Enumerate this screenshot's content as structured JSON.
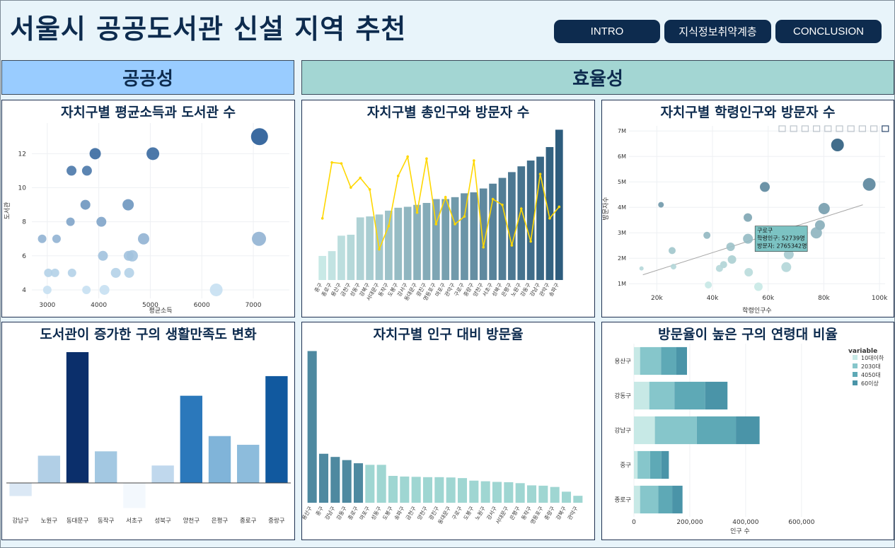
{
  "page_title": "서울시 공공도서관 신설 지역 추천",
  "nav": [
    "INTRO",
    "지식정보취약계층",
    "CONCLUSION"
  ],
  "sections": {
    "left": "공공성",
    "right": "효율성"
  },
  "colors": {
    "navy": "#0d2b4e",
    "section_left": "#99ccff",
    "section_right": "#a3d6d3"
  },
  "toolbar_icons": [
    "camera-icon",
    "zoom-icon",
    "pan-icon",
    "box-select-icon",
    "lasso-icon",
    "zoom-in-icon",
    "zoom-out-icon",
    "autoscale-icon",
    "home-icon",
    "plotly-logo-icon"
  ],
  "charts": {
    "income_libraries": {
      "title": "자치구별 평균소득과 도서관 수",
      "chart_data": {
        "type": "scatter",
        "xlabel": "평균소득",
        "ylabel": "도서관",
        "xlim": [
          2700,
          7700
        ],
        "ylim": [
          3.5,
          13.8
        ],
        "xticks": [
          3000,
          4000,
          5000,
          6000,
          7000
        ],
        "yticks": [
          4,
          6,
          8,
          10,
          12
        ],
        "points": [
          {
            "x": 7120,
            "y": 13,
            "s": 12
          },
          {
            "x": 3930,
            "y": 12,
            "s": 8
          },
          {
            "x": 5050,
            "y": 12,
            "s": 9
          },
          {
            "x": 3470,
            "y": 11,
            "s": 7
          },
          {
            "x": 3770,
            "y": 11,
            "s": 7
          },
          {
            "x": 3740,
            "y": 9,
            "s": 7
          },
          {
            "x": 4570,
            "y": 9,
            "s": 8
          },
          {
            "x": 3450,
            "y": 8,
            "s": 6
          },
          {
            "x": 4050,
            "y": 8,
            "s": 7
          },
          {
            "x": 2900,
            "y": 7,
            "s": 6
          },
          {
            "x": 3180,
            "y": 7,
            "s": 6
          },
          {
            "x": 4870,
            "y": 7,
            "s": 8
          },
          {
            "x": 7110,
            "y": 7,
            "s": 10
          },
          {
            "x": 4080,
            "y": 6,
            "s": 7
          },
          {
            "x": 4580,
            "y": 6,
            "s": 7
          },
          {
            "x": 4650,
            "y": 6,
            "s": 8
          },
          {
            "x": 3020,
            "y": 5,
            "s": 6
          },
          {
            "x": 3150,
            "y": 5,
            "s": 6
          },
          {
            "x": 3480,
            "y": 5,
            "s": 6
          },
          {
            "x": 4330,
            "y": 5,
            "s": 7
          },
          {
            "x": 4590,
            "y": 5,
            "s": 7
          },
          {
            "x": 3000,
            "y": 4,
            "s": 6
          },
          {
            "x": 3760,
            "y": 4,
            "s": 6
          },
          {
            "x": 4110,
            "y": 4,
            "s": 7
          },
          {
            "x": 6280,
            "y": 4,
            "s": 9
          }
        ]
      }
    },
    "population_visitors": {
      "title": "자치구별 총인구와 방문자 수",
      "chart_data": {
        "type": "bar",
        "categories": [
          "중구",
          "종로구",
          "용산구",
          "금천구",
          "성동구",
          "강북구",
          "서대문구",
          "동작구",
          "도봉구",
          "강서구",
          "동대문구",
          "광진구",
          "영등포구",
          "마포구",
          "관악구",
          "구로구",
          "중랑구",
          "양천구",
          "서초구",
          "성북구",
          "은평구",
          "노원구",
          "강동구",
          "강남구",
          "관악구",
          "송파구"
        ],
        "series": [
          {
            "name": "인구",
            "values": [
              1.25,
              1.5,
              2.3,
              2.35,
              3.25,
              3.3,
              3.4,
              3.6,
              3.75,
              3.8,
              3.9,
              4.0,
              4.2,
              4.2,
              4.3,
              4.5,
              4.55,
              4.75,
              5.0,
              5.3,
              5.6,
              5.9,
              6.2,
              6.4,
              6.9,
              7.8
            ]
          },
          {
            "name": "방문자",
            "values": [
              3.2,
              6.1,
              6.05,
              4.8,
              5.3,
              4.7,
              1.6,
              2.8,
              5.4,
              6.4,
              3.5,
              6.3,
              2.9,
              4.3,
              2.9,
              3.3,
              6.2,
              1.7,
              4.2,
              3.9,
              1.8,
              3.7,
              2.0,
              5.5,
              3.2,
              3.8
            ]
          }
        ]
      }
    },
    "school_visitors": {
      "title": "자치구별 학령인구와 방문자 수",
      "chart_data": {
        "type": "scatter",
        "xlabel": "학령인구수",
        "ylabel": "방문자수",
        "xlim": [
          10000,
          102000
        ],
        "ylim": [
          700000,
          7200000
        ],
        "xticks": [
          20000,
          40000,
          60000,
          80000,
          100000
        ],
        "xticklabels": [
          "20k",
          "40k",
          "60k",
          "80k",
          "100k"
        ],
        "yticks": [
          1000000,
          2000000,
          3000000,
          4000000,
          5000000,
          6000000,
          7000000
        ],
        "yticklabels": [
          "1M",
          "2M",
          "3M",
          "4M",
          "5M",
          "6M",
          "7M"
        ],
        "trend": [
          [
            15000,
            1350000
          ],
          [
            94000,
            4100000
          ]
        ],
        "points": [
          {
            "x": 84900,
            "y": 6450000,
            "s": 9
          },
          {
            "x": 58800,
            "y": 4800000,
            "s": 7
          },
          {
            "x": 96300,
            "y": 4900000,
            "s": 9
          },
          {
            "x": 21500,
            "y": 4100000,
            "s": 4
          },
          {
            "x": 80100,
            "y": 3950000,
            "s": 8
          },
          {
            "x": 52700,
            "y": 3600000,
            "s": 6
          },
          {
            "x": 78600,
            "y": 3300000,
            "s": 7
          },
          {
            "x": 77300,
            "y": 3000000,
            "s": 8
          },
          {
            "x": 38000,
            "y": 2900000,
            "s": 5
          },
          {
            "x": 57200,
            "y": 2800000,
            "s": 6
          },
          {
            "x": 52739,
            "y": 2765342,
            "s": 7
          },
          {
            "x": 46500,
            "y": 2450000,
            "s": 6
          },
          {
            "x": 25500,
            "y": 2300000,
            "s": 5
          },
          {
            "x": 67400,
            "y": 2150000,
            "s": 7
          },
          {
            "x": 47000,
            "y": 1950000,
            "s": 6
          },
          {
            "x": 44000,
            "y": 1750000,
            "s": 5
          },
          {
            "x": 42500,
            "y": 1600000,
            "s": 5
          },
          {
            "x": 66500,
            "y": 1650000,
            "s": 7
          },
          {
            "x": 26000,
            "y": 1670000,
            "s": 4
          },
          {
            "x": 14500,
            "y": 1600000,
            "s": 3
          },
          {
            "x": 53000,
            "y": 1450000,
            "s": 6
          },
          {
            "x": 38500,
            "y": 950000,
            "s": 5
          },
          {
            "x": 56500,
            "y": 880000,
            "s": 6
          }
        ],
        "tooltip": {
          "name": "구로구",
          "line1": "학령인구: 52739명",
          "line2": "방문자: 2765342명"
        }
      }
    },
    "satisfaction_change": {
      "title": "도서관이 증가한 구의 생활만족도 변화",
      "chart_data": {
        "type": "bar",
        "categories": [
          "강남구",
          "노원구",
          "동대문구",
          "동작구",
          "서초구",
          "성북구",
          "양천구",
          "은평구",
          "종로구",
          "중랑구"
        ],
        "values": [
          -0.12,
          0.25,
          1.2,
          0.29,
          -0.23,
          0.16,
          0.8,
          0.43,
          0.35,
          0.98
        ],
        "colors": [
          "#dbe8f5",
          "#b1cfe6",
          "#0b2f6b",
          "#a3c8e2",
          "#f3f8fd",
          "#c0d8ed",
          "#2b78bb",
          "#80b4d9",
          "#8dbcdc",
          "#11599f"
        ]
      }
    },
    "visit_ratio": {
      "title": "자치구별 인구 대비 방문율",
      "chart_data": {
        "type": "bar",
        "categories": [
          "용산구",
          "중구",
          "강남구",
          "강동구",
          "종로구",
          "마포구",
          "성동구",
          "도봉구",
          "송파구",
          "금천구",
          "양천구",
          "광진구",
          "동대문구",
          "구로구",
          "도봉구",
          "노원구",
          "강서구",
          "서대문구",
          "은평구",
          "동작구",
          "영등포구",
          "중랑구",
          "강북구",
          "관악구"
        ],
        "values": [
          4.8,
          1.55,
          1.45,
          1.35,
          1.25,
          1.2,
          1.2,
          0.85,
          0.83,
          0.82,
          0.81,
          0.81,
          0.8,
          0.78,
          0.7,
          0.68,
          0.66,
          0.65,
          0.62,
          0.55,
          0.54,
          0.5,
          0.35,
          0.22
        ],
        "highlight_count": 5
      }
    },
    "age_ratio": {
      "title": "방문율이 높은 구의 연령대 비율",
      "chart_data": {
        "type": "bar",
        "orientation": "horizontal",
        "categories": [
          "용산구",
          "강동구",
          "강남구",
          "중구",
          "종로구"
        ],
        "series": [
          {
            "name": "10대이하",
            "values": [
              22000,
              55000,
              75000,
              13000,
              22000
            ]
          },
          {
            "name": "2030대",
            "values": [
              75000,
              90000,
              150000,
              45000,
              65000
            ]
          },
          {
            "name": "4050대",
            "values": [
              55000,
              110000,
              140000,
              40000,
              50000
            ]
          },
          {
            "name": "60이상",
            "values": [
              38000,
              80000,
              85000,
              27000,
              37000
            ]
          }
        ],
        "colors": [
          "#c7e9e6",
          "#86c6cb",
          "#5ea9b6",
          "#4a94a8"
        ],
        "legend_title": "variable",
        "xlabel": "인구 수",
        "xticks": [
          0,
          200000,
          400000,
          600000
        ],
        "xticklabels": [
          "0",
          "200,000",
          "400,000",
          "600,000"
        ],
        "xlim": [
          0,
          760000
        ]
      }
    }
  }
}
